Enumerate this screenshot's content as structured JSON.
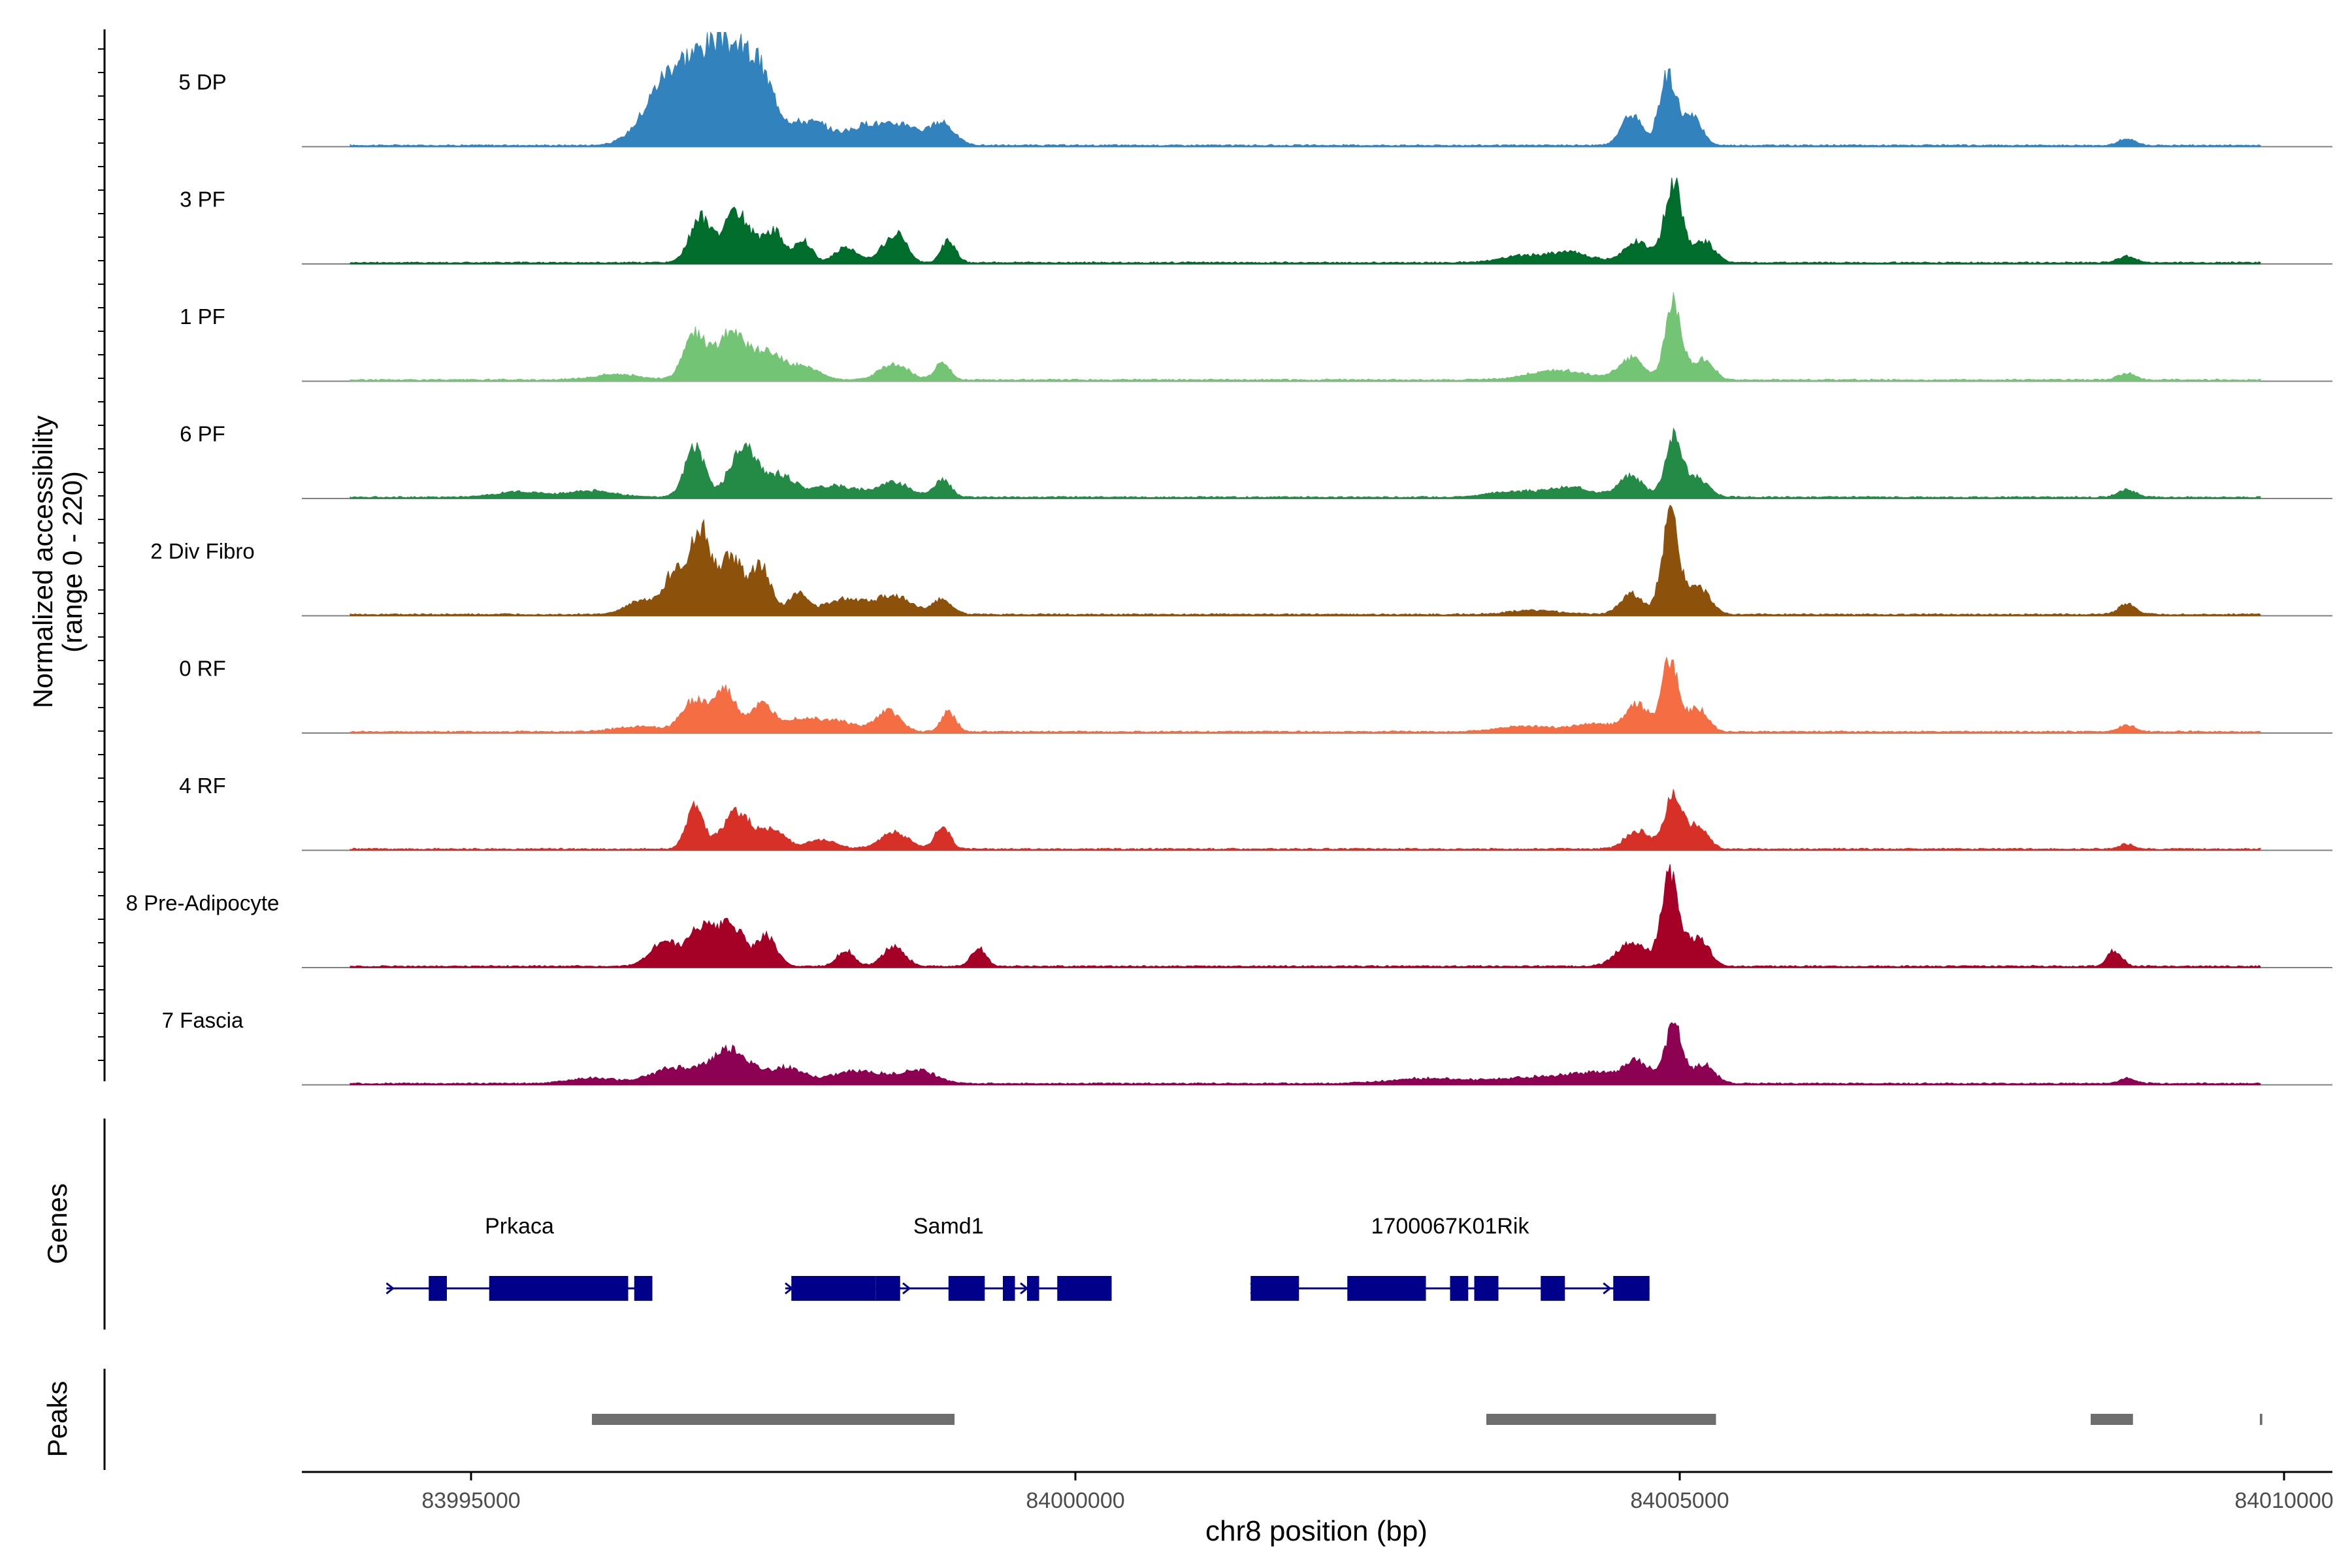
{
  "chart_data": {
    "type": "area",
    "title": "",
    "chrom": "chr8",
    "xlabel": "chr8 position (bp)",
    "ylabel_line1": "Normalized accessibility",
    "ylabel_line2": "(range 0 - 220)",
    "xlim": [
      83993600,
      84010400
    ],
    "ylim": [
      0,
      220
    ],
    "xticks": [
      83995000,
      84000000,
      84005000,
      84010000
    ],
    "xtick_labels": [
      "83995000",
      "84000000",
      "84005000",
      "84010000"
    ],
    "track_start": 83994000,
    "track_end": 84009800,
    "series": [
      {
        "name": "5 DP",
        "color": "#3182bd",
        "peaks": [
          [
            83996600,
            180,
            85
          ],
          [
            83996900,
            240,
            110
          ],
          [
            83997150,
            200,
            125
          ],
          [
            83997400,
            120,
            80
          ],
          [
            83997800,
            180,
            45
          ],
          [
            83998300,
            150,
            40
          ],
          [
            83998600,
            120,
            35
          ],
          [
            83998900,
            100,
            42
          ],
          [
            84004600,
            80,
            60
          ],
          [
            84004900,
            70,
            135
          ],
          [
            84005100,
            80,
            55
          ],
          [
            84008700,
            70,
            12
          ]
        ]
      },
      {
        "name": "3 PF",
        "color": "#006d2c",
        "peaks": [
          [
            83996900,
            90,
            85
          ],
          [
            83997200,
            110,
            95
          ],
          [
            83997500,
            90,
            60
          ],
          [
            83997750,
            70,
            40
          ],
          [
            83998100,
            90,
            30
          ],
          [
            83998450,
            90,
            30
          ],
          [
            83998550,
            70,
            38
          ],
          [
            83998950,
            60,
            42
          ],
          [
            84003700,
            200,
            12
          ],
          [
            84004100,
            180,
            18
          ],
          [
            84004650,
            110,
            40
          ],
          [
            84004950,
            70,
            155
          ],
          [
            84005200,
            90,
            40
          ],
          [
            84008700,
            70,
            12
          ]
        ]
      },
      {
        "name": "1 PF",
        "color": "#74c476",
        "peaks": [
          [
            83996200,
            200,
            10
          ],
          [
            83996850,
            90,
            85
          ],
          [
            83997150,
            120,
            90
          ],
          [
            83997450,
            120,
            50
          ],
          [
            83997750,
            130,
            25
          ],
          [
            83998500,
            120,
            30
          ],
          [
            83998900,
            60,
            35
          ],
          [
            84004000,
            250,
            18
          ],
          [
            84004600,
            100,
            40
          ],
          [
            84004950,
            70,
            145
          ],
          [
            84005200,
            80,
            40
          ],
          [
            84008700,
            70,
            12
          ]
        ]
      },
      {
        "name": "6 PF",
        "color": "#238b45",
        "peaks": [
          [
            83995400,
            200,
            10
          ],
          [
            83996000,
            200,
            12
          ],
          [
            83996850,
            80,
            100
          ],
          [
            83997250,
            110,
            95
          ],
          [
            83997550,
            120,
            40
          ],
          [
            83998000,
            200,
            22
          ],
          [
            83998500,
            130,
            28
          ],
          [
            83998900,
            70,
            32
          ],
          [
            84003600,
            200,
            10
          ],
          [
            84004100,
            200,
            18
          ],
          [
            84004600,
            100,
            40
          ],
          [
            84004950,
            70,
            115
          ],
          [
            84005150,
            90,
            35
          ],
          [
            84008700,
            70,
            15
          ]
        ]
      },
      {
        "name": "2 Div Fibro",
        "color": "#8c510a",
        "peaks": [
          [
            83996400,
            120,
            25
          ],
          [
            83996700,
            100,
            85
          ],
          [
            83996900,
            80,
            155
          ],
          [
            83997150,
            100,
            110
          ],
          [
            83997400,
            80,
            90
          ],
          [
            83997700,
            80,
            40
          ],
          [
            83998100,
            170,
            30
          ],
          [
            83998500,
            140,
            35
          ],
          [
            83998900,
            80,
            30
          ],
          [
            84003800,
            200,
            8
          ],
          [
            84004600,
            90,
            40
          ],
          [
            84004920,
            70,
            185
          ],
          [
            84005150,
            100,
            50
          ],
          [
            84008700,
            70,
            20
          ]
        ]
      },
      {
        "name": "0 RF",
        "color": "#f46d43",
        "peaks": [
          [
            83996400,
            200,
            10
          ],
          [
            83996850,
            100,
            60
          ],
          [
            83997100,
            90,
            78
          ],
          [
            83997400,
            100,
            50
          ],
          [
            83997700,
            130,
            22
          ],
          [
            83998000,
            160,
            22
          ],
          [
            83998450,
            100,
            40
          ],
          [
            83998950,
            60,
            38
          ],
          [
            84003700,
            200,
            10
          ],
          [
            84004300,
            200,
            15
          ],
          [
            84004650,
            90,
            50
          ],
          [
            84004920,
            70,
            135
          ],
          [
            84005150,
            80,
            45
          ],
          [
            84008700,
            70,
            12
          ]
        ]
      },
      {
        "name": "4 RF",
        "color": "#d73027",
        "peaks": [
          [
            83996850,
            70,
            80
          ],
          [
            83997200,
            120,
            70
          ],
          [
            83997500,
            100,
            35
          ],
          [
            83997900,
            120,
            18
          ],
          [
            83998500,
            120,
            32
          ],
          [
            83998900,
            60,
            45
          ],
          [
            84004650,
            100,
            35
          ],
          [
            84004950,
            70,
            105
          ],
          [
            84005150,
            80,
            45
          ],
          [
            84008700,
            60,
            10
          ]
        ]
      },
      {
        "name": "8 Pre-Adipocyte",
        "color": "#a50026",
        "peaks": [
          [
            83996600,
            120,
            45
          ],
          [
            83996900,
            100,
            70
          ],
          [
            83997150,
            110,
            80
          ],
          [
            83997450,
            80,
            55
          ],
          [
            83998100,
            70,
            30
          ],
          [
            83998500,
            90,
            38
          ],
          [
            83999200,
            60,
            35
          ],
          [
            84004600,
            120,
            45
          ],
          [
            84004920,
            70,
            185
          ],
          [
            84005150,
            90,
            55
          ],
          [
            84008600,
            60,
            30
          ]
        ]
      },
      {
        "name": "7 Fascia",
        "color": "#8c0152",
        "peaks": [
          [
            83996000,
            200,
            10
          ],
          [
            83996700,
            200,
            30
          ],
          [
            83997150,
            150,
            65
          ],
          [
            83997600,
            150,
            30
          ],
          [
            83998200,
            200,
            25
          ],
          [
            83998700,
            150,
            25
          ],
          [
            84002900,
            300,
            10
          ],
          [
            84003800,
            300,
            12
          ],
          [
            84004300,
            200,
            18
          ],
          [
            84004650,
            110,
            40
          ],
          [
            84004950,
            70,
            110
          ],
          [
            84005200,
            90,
            35
          ],
          [
            84008700,
            60,
            10
          ]
        ]
      }
    ],
    "genes": [
      {
        "name": "Prkaca",
        "start": 83994300,
        "end": 83996500,
        "exons": [
          [
            83994650,
            83994800
          ],
          [
            83995150,
            83996300
          ],
          [
            83996350,
            83996500
          ]
        ]
      },
      {
        "name": "Samd1",
        "start": 83997600,
        "end": 84000300,
        "exons": [
          [
            83997650,
            83998350
          ],
          [
            83998350,
            83998550
          ],
          [
            83998950,
            83999250
          ],
          [
            83999400,
            83999500
          ],
          [
            83999600,
            83999700
          ],
          [
            83999850,
            84000300
          ]
        ]
      },
      {
        "name": "1700067K01Rik",
        "start": 84001450,
        "end": 84004750,
        "exons": [
          [
            84001450,
            84001850
          ],
          [
            84002250,
            84002900
          ],
          [
            84003100,
            84003250
          ],
          [
            84003300,
            84003500
          ],
          [
            84003850,
            84004050
          ],
          [
            84004450,
            84004750
          ]
        ]
      }
    ],
    "peaks": [
      [
        83996000,
        83999000
      ],
      [
        84003400,
        84005300
      ],
      [
        84008400,
        84008750
      ],
      [
        84009800,
        84009820
      ]
    ]
  },
  "tracks": {
    "genes_label": "Genes",
    "peaks_label": "Peaks"
  }
}
